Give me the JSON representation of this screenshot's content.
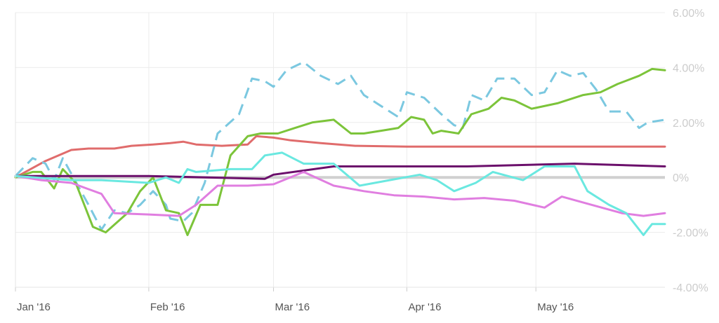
{
  "chart_data": {
    "type": "line",
    "title": "",
    "xlabel": "",
    "ylabel": "",
    "y_axis_position": "right",
    "ylim": [
      -4,
      6
    ],
    "x_range": [
      "2016-01-01",
      "2016-05-31"
    ],
    "y_ticks": [
      {
        "value": 6,
        "label": "6.00%"
      },
      {
        "value": 4,
        "label": "4.00%"
      },
      {
        "value": 2,
        "label": "2.00%"
      },
      {
        "value": 0,
        "label": "0%"
      },
      {
        "value": -2,
        "label": "-2.00%"
      },
      {
        "value": -4,
        "label": "-4.00%"
      }
    ],
    "x_ticks": [
      {
        "date": "2016-01-01",
        "label": "Jan '16"
      },
      {
        "date": "2016-02-01",
        "label": "Feb '16"
      },
      {
        "date": "2016-03-01",
        "label": "Mar '16"
      },
      {
        "date": "2016-04-01",
        "label": "Apr '16"
      },
      {
        "date": "2016-05-01",
        "label": "May '16"
      }
    ],
    "grid": true,
    "zero_line": true,
    "series": [
      {
        "color": "#e06c6c",
        "dashed": false,
        "points": [
          [
            "2016-01-01",
            0.0
          ],
          [
            "2016-01-08",
            0.6
          ],
          [
            "2016-01-14",
            1.0
          ],
          [
            "2016-01-18",
            1.05
          ],
          [
            "2016-01-24",
            1.05
          ],
          [
            "2016-01-28",
            1.15
          ],
          [
            "2016-02-02",
            1.2
          ],
          [
            "2016-02-06",
            1.25
          ],
          [
            "2016-02-09",
            1.3
          ],
          [
            "2016-02-12",
            1.2
          ],
          [
            "2016-02-18",
            1.15
          ],
          [
            "2016-02-24",
            1.2
          ],
          [
            "2016-02-26",
            1.5
          ],
          [
            "2016-03-01",
            1.45
          ],
          [
            "2016-03-05",
            1.35
          ],
          [
            "2016-03-12",
            1.25
          ],
          [
            "2016-03-20",
            1.15
          ],
          [
            "2016-04-01",
            1.12
          ],
          [
            "2016-05-31",
            1.12
          ]
        ]
      },
      {
        "color": "#7bc8e0",
        "dashed": true,
        "points": [
          [
            "2016-01-01",
            0.05
          ],
          [
            "2016-01-05",
            0.7
          ],
          [
            "2016-01-08",
            0.5
          ],
          [
            "2016-01-10",
            -0.1
          ],
          [
            "2016-01-12",
            0.7
          ],
          [
            "2016-01-18",
            -1.0
          ],
          [
            "2016-01-21",
            -1.9
          ],
          [
            "2016-01-24",
            -1.2
          ],
          [
            "2016-01-27",
            -1.3
          ],
          [
            "2016-01-30",
            -1.0
          ],
          [
            "2016-02-02",
            -0.5
          ],
          [
            "2016-02-05",
            -1.0
          ],
          [
            "2016-02-06",
            -1.5
          ],
          [
            "2016-02-09",
            -1.6
          ],
          [
            "2016-02-11",
            -1.3
          ],
          [
            "2016-02-14",
            -0.2
          ],
          [
            "2016-02-17",
            1.6
          ],
          [
            "2016-02-22",
            2.3
          ],
          [
            "2016-02-25",
            3.6
          ],
          [
            "2016-02-28",
            3.5
          ],
          [
            "2016-03-01",
            3.3
          ],
          [
            "2016-03-04",
            3.9
          ],
          [
            "2016-03-08",
            4.2
          ],
          [
            "2016-03-12",
            3.7
          ],
          [
            "2016-03-16",
            3.4
          ],
          [
            "2016-03-19",
            3.7
          ],
          [
            "2016-03-22",
            3.0
          ],
          [
            "2016-03-26",
            2.6
          ],
          [
            "2016-03-30",
            2.2
          ],
          [
            "2016-04-01",
            3.1
          ],
          [
            "2016-04-05",
            2.9
          ],
          [
            "2016-04-09",
            2.3
          ],
          [
            "2016-04-12",
            1.9
          ],
          [
            "2016-04-14",
            1.8
          ],
          [
            "2016-04-16",
            3.0
          ],
          [
            "2016-04-19",
            2.8
          ],
          [
            "2016-04-22",
            3.6
          ],
          [
            "2016-04-26",
            3.6
          ],
          [
            "2016-04-30",
            3.0
          ],
          [
            "2016-05-03",
            3.1
          ],
          [
            "2016-05-06",
            3.9
          ],
          [
            "2016-05-09",
            3.7
          ],
          [
            "2016-05-12",
            3.8
          ],
          [
            "2016-05-15",
            3.2
          ],
          [
            "2016-05-18",
            2.4
          ],
          [
            "2016-05-22",
            2.4
          ],
          [
            "2016-05-25",
            1.8
          ],
          [
            "2016-05-27",
            2.0
          ],
          [
            "2016-05-31",
            2.1
          ]
        ]
      },
      {
        "color": "#7cc43a",
        "dashed": false,
        "points": [
          [
            "2016-01-01",
            0.0
          ],
          [
            "2016-01-05",
            0.2
          ],
          [
            "2016-01-07",
            0.2
          ],
          [
            "2016-01-10",
            -0.4
          ],
          [
            "2016-01-12",
            0.3
          ],
          [
            "2016-01-15",
            -0.2
          ],
          [
            "2016-01-19",
            -1.8
          ],
          [
            "2016-01-22",
            -2.0
          ],
          [
            "2016-01-27",
            -1.3
          ],
          [
            "2016-01-30",
            -0.5
          ],
          [
            "2016-02-02",
            0.0
          ],
          [
            "2016-02-05",
            -1.2
          ],
          [
            "2016-02-08",
            -1.3
          ],
          [
            "2016-02-10",
            -2.1
          ],
          [
            "2016-02-13",
            -1.0
          ],
          [
            "2016-02-17",
            -1.0
          ],
          [
            "2016-02-20",
            0.8
          ],
          [
            "2016-02-24",
            1.5
          ],
          [
            "2016-02-27",
            1.6
          ],
          [
            "2016-03-02",
            1.6
          ],
          [
            "2016-03-06",
            1.8
          ],
          [
            "2016-03-10",
            2.0
          ],
          [
            "2016-03-15",
            2.1
          ],
          [
            "2016-03-19",
            1.6
          ],
          [
            "2016-03-22",
            1.6
          ],
          [
            "2016-03-26",
            1.7
          ],
          [
            "2016-03-30",
            1.8
          ],
          [
            "2016-04-02",
            2.2
          ],
          [
            "2016-04-05",
            2.1
          ],
          [
            "2016-04-07",
            1.6
          ],
          [
            "2016-04-09",
            1.7
          ],
          [
            "2016-04-13",
            1.6
          ],
          [
            "2016-04-16",
            2.3
          ],
          [
            "2016-04-20",
            2.5
          ],
          [
            "2016-04-23",
            2.9
          ],
          [
            "2016-04-26",
            2.8
          ],
          [
            "2016-04-30",
            2.5
          ],
          [
            "2016-05-06",
            2.7
          ],
          [
            "2016-05-12",
            3.0
          ],
          [
            "2016-05-16",
            3.1
          ],
          [
            "2016-05-20",
            3.4
          ],
          [
            "2016-05-25",
            3.7
          ],
          [
            "2016-05-28",
            3.95
          ],
          [
            "2016-05-31",
            3.9
          ]
        ]
      },
      {
        "color": "#6b0f6b",
        "dashed": false,
        "points": [
          [
            "2016-01-01",
            0.05
          ],
          [
            "2016-02-01",
            0.05
          ],
          [
            "2016-02-28",
            -0.05
          ],
          [
            "2016-03-01",
            0.1
          ],
          [
            "2016-03-15",
            0.4
          ],
          [
            "2016-04-15",
            0.4
          ],
          [
            "2016-05-10",
            0.5
          ],
          [
            "2016-05-31",
            0.4
          ]
        ]
      },
      {
        "color": "#e07ee0",
        "dashed": false,
        "points": [
          [
            "2016-01-01",
            0.05
          ],
          [
            "2016-01-07",
            -0.1
          ],
          [
            "2016-01-14",
            -0.2
          ],
          [
            "2016-01-21",
            -0.6
          ],
          [
            "2016-01-24",
            -1.3
          ],
          [
            "2016-02-01",
            -1.35
          ],
          [
            "2016-02-08",
            -1.4
          ],
          [
            "2016-02-12",
            -1.0
          ],
          [
            "2016-02-17",
            -0.3
          ],
          [
            "2016-02-24",
            -0.3
          ],
          [
            "2016-03-01",
            -0.25
          ],
          [
            "2016-03-08",
            0.2
          ],
          [
            "2016-03-15",
            -0.3
          ],
          [
            "2016-03-22",
            -0.5
          ],
          [
            "2016-03-29",
            -0.65
          ],
          [
            "2016-04-05",
            -0.7
          ],
          [
            "2016-04-12",
            -0.8
          ],
          [
            "2016-04-19",
            -0.75
          ],
          [
            "2016-04-26",
            -0.85
          ],
          [
            "2016-05-03",
            -1.1
          ],
          [
            "2016-05-07",
            -0.7
          ],
          [
            "2016-05-14",
            -1.0
          ],
          [
            "2016-05-21",
            -1.3
          ],
          [
            "2016-05-26",
            -1.4
          ],
          [
            "2016-05-31",
            -1.3
          ]
        ]
      },
      {
        "color": "#6ae8e0",
        "dashed": false,
        "points": [
          [
            "2016-01-01",
            0.05
          ],
          [
            "2016-01-14",
            -0.1
          ],
          [
            "2016-01-21",
            -0.1
          ],
          [
            "2016-02-01",
            -0.2
          ],
          [
            "2016-02-05",
            0.0
          ],
          [
            "2016-02-08",
            -0.2
          ],
          [
            "2016-02-10",
            0.3
          ],
          [
            "2016-02-12",
            0.2
          ],
          [
            "2016-02-20",
            0.3
          ],
          [
            "2016-02-25",
            0.3
          ],
          [
            "2016-02-28",
            0.8
          ],
          [
            "2016-03-03",
            0.9
          ],
          [
            "2016-03-08",
            0.5
          ],
          [
            "2016-03-15",
            0.5
          ],
          [
            "2016-03-21",
            -0.3
          ],
          [
            "2016-03-28",
            -0.1
          ],
          [
            "2016-04-04",
            0.1
          ],
          [
            "2016-04-08",
            -0.1
          ],
          [
            "2016-04-12",
            -0.5
          ],
          [
            "2016-04-17",
            -0.2
          ],
          [
            "2016-04-21",
            0.2
          ],
          [
            "2016-04-28",
            -0.1
          ],
          [
            "2016-05-03",
            0.4
          ],
          [
            "2016-05-10",
            0.4
          ],
          [
            "2016-05-13",
            -0.5
          ],
          [
            "2016-05-18",
            -1.0
          ],
          [
            "2016-05-22",
            -1.3
          ],
          [
            "2016-05-26",
            -2.1
          ],
          [
            "2016-05-28",
            -1.7
          ],
          [
            "2016-05-31",
            -1.7
          ]
        ]
      }
    ]
  }
}
